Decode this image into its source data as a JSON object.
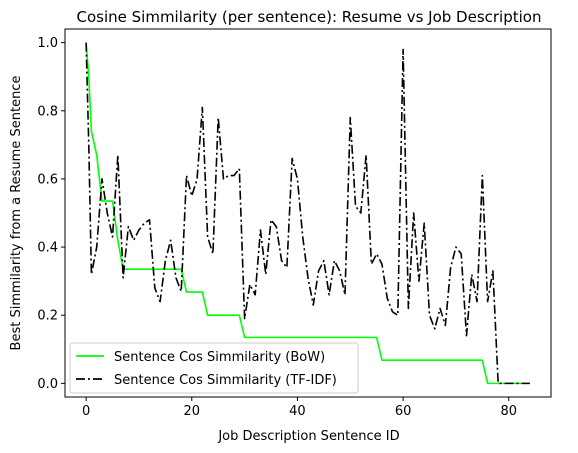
{
  "chart_data": {
    "type": "line",
    "title": "Cosine Simmilarity (per sentence): Resume vs Job Description",
    "xlabel": "Job Description Sentence ID",
    "ylabel": "Best Simmilarity from a Resume Sentence",
    "xlim": [
      -4,
      88
    ],
    "ylim": [
      -0.04,
      1.04
    ],
    "xticks": [
      0,
      20,
      40,
      60,
      80
    ],
    "yticks": [
      0.0,
      0.2,
      0.4,
      0.6,
      0.8,
      1.0
    ],
    "grid": false,
    "legend_position": "lower-left",
    "series": [
      {
        "name": "Sentence Cos Simmilarity (BoW)",
        "color": "#00ff00",
        "style": "solid",
        "x": [
          0,
          0.5,
          1,
          2,
          3,
          4,
          5,
          6,
          7,
          8,
          9,
          10,
          11,
          12,
          13,
          14,
          15,
          16,
          17,
          18,
          19,
          20,
          21,
          22,
          23,
          24,
          25,
          26,
          27,
          28,
          29,
          30,
          31,
          32,
          33,
          34,
          35,
          36,
          37,
          38,
          39,
          40,
          41,
          42,
          43,
          44,
          45,
          46,
          47,
          48,
          49,
          50,
          51,
          52,
          53,
          54,
          55,
          56,
          57,
          58,
          59,
          60,
          61,
          62,
          63,
          64,
          65,
          66,
          67,
          68,
          69,
          70,
          71,
          72,
          73,
          74,
          75,
          76,
          77,
          78,
          79,
          80,
          81,
          82,
          83,
          84
        ],
        "y": [
          1.0,
          0.9,
          0.74,
          0.67,
          0.535,
          0.535,
          0.535,
          0.42,
          0.335,
          0.335,
          0.335,
          0.335,
          0.335,
          0.335,
          0.335,
          0.335,
          0.335,
          0.335,
          0.335,
          0.335,
          0.268,
          0.268,
          0.268,
          0.268,
          0.2,
          0.2,
          0.2,
          0.2,
          0.2,
          0.2,
          0.2,
          0.135,
          0.135,
          0.135,
          0.135,
          0.135,
          0.135,
          0.135,
          0.135,
          0.135,
          0.135,
          0.135,
          0.135,
          0.135,
          0.135,
          0.135,
          0.135,
          0.135,
          0.135,
          0.135,
          0.135,
          0.135,
          0.135,
          0.135,
          0.135,
          0.135,
          0.135,
          0.068,
          0.068,
          0.068,
          0.068,
          0.068,
          0.068,
          0.068,
          0.068,
          0.068,
          0.068,
          0.068,
          0.068,
          0.068,
          0.068,
          0.068,
          0.068,
          0.068,
          0.068,
          0.068,
          0.068,
          0.0,
          0.0,
          0.0,
          0.0,
          0.0,
          0.0,
          0.0,
          0.0,
          0.0
        ]
      },
      {
        "name": "Sentence Cos Simmilarity (TF-IDF)",
        "color": "#000000",
        "style": "dashdot",
        "x": [
          0,
          0.5,
          1,
          2,
          3,
          4,
          5,
          6,
          7,
          8,
          9,
          10,
          11,
          12,
          13,
          14,
          15,
          16,
          17,
          18,
          19,
          20,
          21,
          22,
          23,
          24,
          25,
          26,
          27,
          28,
          29,
          30,
          31,
          32,
          33,
          34,
          35,
          36,
          37,
          38,
          39,
          40,
          41,
          42,
          43,
          44,
          45,
          46,
          47,
          48,
          49,
          50,
          51,
          52,
          53,
          54,
          55,
          56,
          57,
          58,
          59,
          60,
          61,
          62,
          63,
          64,
          65,
          66,
          67,
          68,
          69,
          70,
          71,
          72,
          73,
          74,
          75,
          76,
          77,
          78,
          79,
          80,
          81,
          82,
          83,
          84
        ],
        "y": [
          1.0,
          0.7,
          0.32,
          0.4,
          0.6,
          0.5,
          0.43,
          0.67,
          0.31,
          0.46,
          0.42,
          0.45,
          0.47,
          0.48,
          0.28,
          0.24,
          0.36,
          0.42,
          0.31,
          0.27,
          0.61,
          0.55,
          0.6,
          0.81,
          0.43,
          0.38,
          0.78,
          0.6,
          0.61,
          0.61,
          0.63,
          0.19,
          0.29,
          0.26,
          0.45,
          0.32,
          0.48,
          0.46,
          0.36,
          0.34,
          0.66,
          0.6,
          0.43,
          0.31,
          0.23,
          0.33,
          0.36,
          0.26,
          0.36,
          0.33,
          0.26,
          0.78,
          0.52,
          0.5,
          0.67,
          0.35,
          0.38,
          0.35,
          0.25,
          0.21,
          0.2,
          0.98,
          0.22,
          0.5,
          0.3,
          0.47,
          0.2,
          0.16,
          0.22,
          0.17,
          0.34,
          0.4,
          0.38,
          0.14,
          0.32,
          0.24,
          0.61,
          0.24,
          0.33,
          0.0,
          0.0,
          0.0,
          0.0,
          0.0,
          0.0,
          0.0
        ]
      }
    ]
  }
}
